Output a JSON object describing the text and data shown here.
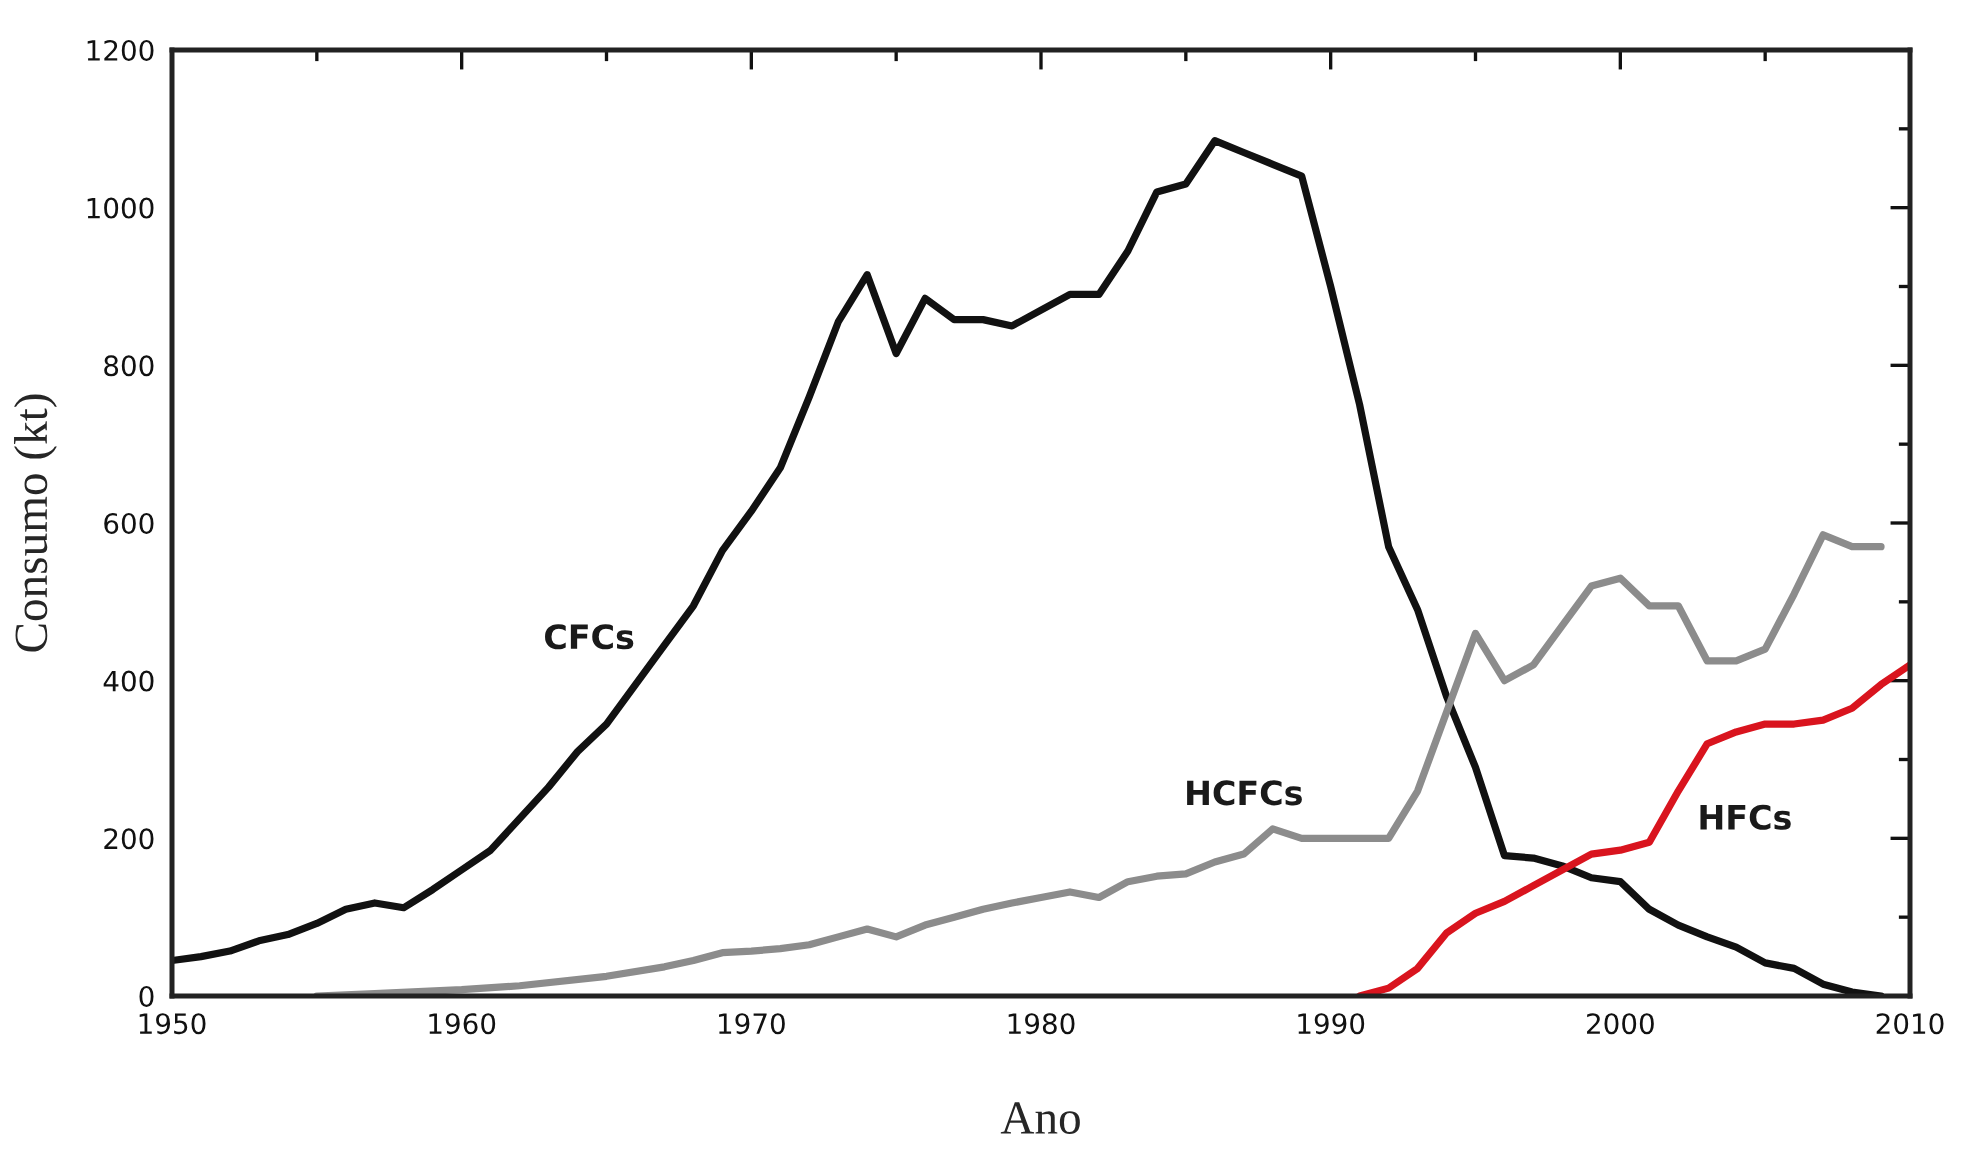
{
  "chart_data": {
    "type": "line",
    "xlabel": "Ano",
    "ylabel": "Consumo (kt)",
    "xlim": [
      1950,
      2010
    ],
    "ylim": [
      0,
      1200
    ],
    "xticks": [
      1950,
      {
        "value": 1955,
        "label": null
      },
      1960,
      {
        "value": 1965,
        "label": null
      },
      1970,
      {
        "value": 1975,
        "label": null
      },
      1980,
      {
        "value": 1985,
        "label": null
      },
      1990,
      {
        "value": 1995,
        "label": null
      },
      2000,
      {
        "value": 2005,
        "label": null
      },
      2010
    ],
    "yticks": [
      0,
      {
        "value": 100,
        "label": null
      },
      200,
      {
        "value": 300,
        "label": null
      },
      400,
      {
        "value": 500,
        "label": null
      },
      600,
      {
        "value": 700,
        "label": null
      },
      800,
      {
        "value": 900,
        "label": null
      },
      1000,
      {
        "value": 1100,
        "label": null
      },
      1200
    ],
    "grid": false,
    "legend": false,
    "line_style": "solid",
    "marker": "none",
    "series": [
      {
        "name": "CFCs",
        "color": "#111111",
        "x": [
          1950,
          1951,
          1952,
          1953,
          1954,
          1955,
          1956,
          1957,
          1958,
          1959,
          1960,
          1961,
          1962,
          1963,
          1964,
          1965,
          1966,
          1967,
          1968,
          1969,
          1970,
          1971,
          1972,
          1973,
          1974,
          1975,
          1976,
          1977,
          1978,
          1979,
          1980,
          1981,
          1982,
          1983,
          1984,
          1985,
          1986,
          1987,
          1988,
          1989,
          1990,
          1991,
          1992,
          1993,
          1994,
          1995,
          1996,
          1997,
          1998,
          1999,
          2000,
          2001,
          2002,
          2003,
          2004,
          2005,
          2006,
          2007,
          2008,
          2009
        ],
        "values": [
          45,
          50,
          57,
          70,
          78,
          92,
          110,
          118,
          112,
          135,
          160,
          185,
          225,
          265,
          310,
          345,
          395,
          445,
          495,
          565,
          615,
          670,
          760,
          855,
          915,
          815,
          885,
          858,
          858,
          850,
          870,
          890,
          890,
          945,
          1020,
          1030,
          1085,
          1070,
          1055,
          1040,
          900,
          750,
          570,
          490,
          380,
          290,
          178,
          175,
          165,
          150,
          145,
          110,
          90,
          75,
          62,
          42,
          35,
          15,
          5,
          0
        ]
      },
      {
        "name": "HCFCs",
        "color": "#8c8c8c",
        "x": [
          1955,
          1957,
          1960,
          1962,
          1965,
          1967,
          1968,
          1969,
          1970,
          1971,
          1972,
          1973,
          1974,
          1975,
          1976,
          1977,
          1978,
          1979,
          1980,
          1981,
          1982,
          1983,
          1984,
          1985,
          1986,
          1987,
          1988,
          1989,
          1990,
          1991,
          1992,
          1993,
          1994,
          1995,
          1996,
          1997,
          1998,
          1999,
          2000,
          2001,
          2002,
          2003,
          2004,
          2005,
          2006,
          2007,
          2008,
          2009
        ],
        "values": [
          0,
          3,
          8,
          13,
          25,
          37,
          45,
          55,
          57,
          60,
          65,
          75,
          85,
          75,
          90,
          100,
          110,
          118,
          125,
          132,
          125,
          145,
          152,
          155,
          170,
          180,
          212,
          200,
          200,
          200,
          200,
          260,
          360,
          460,
          400,
          420,
          470,
          520,
          530,
          495,
          495,
          425,
          425,
          440,
          510,
          585,
          570,
          570
        ]
      },
      {
        "name": "HFCs",
        "color": "#d9141e",
        "x": [
          1991,
          1992,
          1993,
          1994,
          1995,
          1996,
          1997,
          1998,
          1999,
          2000,
          2001,
          2002,
          2003,
          2004,
          2005,
          2006,
          2007,
          2008,
          2009,
          2010
        ],
        "values": [
          0,
          10,
          35,
          80,
          105,
          120,
          140,
          160,
          180,
          185,
          195,
          260,
          320,
          335,
          345,
          345,
          350,
          365,
          395,
          420
        ]
      }
    ]
  }
}
